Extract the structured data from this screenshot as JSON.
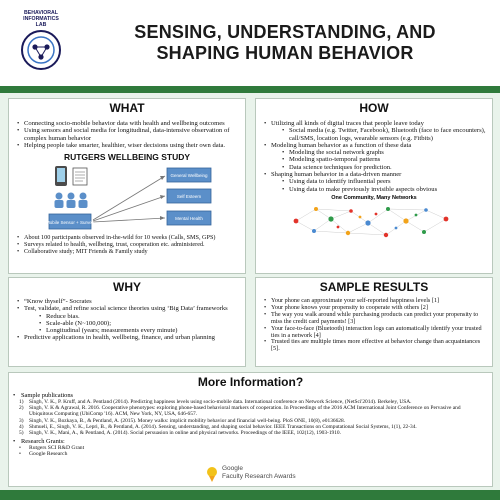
{
  "header": {
    "logo_lines": [
      "BEHAVIORAL",
      "INFORMATICS",
      "LAB"
    ],
    "title_line1": "SENSING, UNDERSTANDING, AND",
    "title_line2": "SHAPING HUMAN BEHAVIOR"
  },
  "what": {
    "heading": "WHAT",
    "bullets": [
      "Connecting socio-mobile behavior data with health and wellbeing outcomes",
      "Using sensors and social media for longitudinal, data-intensive observation of complex human behavior",
      "Helping people take smarter, healthier, wiser decisions using their own data."
    ],
    "study_title": "RUTGERS WELLBEING STUDY",
    "study_boxes": [
      "General Wellbeing",
      "Self Esteem",
      "Mental Health"
    ],
    "mobile_box": "Mobile Sensor + Survey",
    "bullets2": [
      "About 100 participants observed in-the-wild for 10 weeks (Calls, SMS, GPS)",
      "Surveys related to health, wellbeing, trust, cooperation etc. administered.",
      "Collaborative study; MIT Friends & Family study"
    ]
  },
  "why": {
    "heading": "WHY",
    "b1": "“Know thyself”- Socrates",
    "b2": "Test, validate, and refine social science theories using ‘Big Data’ frameworks",
    "sub": [
      "Reduce bias.",
      "Scale-able (N~100,000);",
      "Longitudinal (years; measurements every minute)"
    ],
    "b3": "Predictive applications in health, wellbeing, finance, and urban planning"
  },
  "how": {
    "heading": "HOW",
    "b1": "Utilizing all kinds of digital traces that people leave today",
    "b1_sub": [
      "Social media (e.g. Twitter, Facebook), Bluetooth (face to face encounters), call/SMS, location logs, wearable sensors (e.g. Fitbits)"
    ],
    "b2": "Modeling human behavior as a function of these data",
    "b2_sub": [
      "Modeling the social network graphs",
      "Modeling spatio-temporal patterns",
      "Data science techniques for prediction."
    ],
    "b3": "Shaping human behavior in a data-driven manner",
    "b3_sub": [
      "Using data to identify influential peers",
      "Using data to make previously invisible aspects obvious"
    ],
    "network_title": "One Community, Many Networks"
  },
  "results": {
    "heading": "SAMPLE RESULTS",
    "items": [
      "Your phone can approximate your self-reported happiness levels [1]",
      "Your phone knows your propensity to cooperate with others [2]",
      "The way you walk around while purchasing products can predict your propensity to miss the credit card payments! [3]",
      "Your face-to-face (Bluetooth) interaction logs can automatically identify your trusted ties in a network [4]",
      "Trusted ties are multiple times more effective at behavior change than acquaintances [5]."
    ]
  },
  "more": {
    "heading": "More Information?",
    "pubs_label": "Sample publications",
    "pubs": [
      {
        "n": "1)",
        "t": "Singh, V. K., P. Kruff, and A. Pentland (2014). Predicting happiness levels using socio-mobile data. International conference on Network Science, (NetSci'2014). Berkeley, USA."
      },
      {
        "n": "2)",
        "t": "Singh, V. K & Agrawal, R. 2016. Cooperative phenotypes: exploring phone-based behavioral markers of cooperation. In Proceedings of the 2016 ACM International Joint Conference on Pervasive and Ubiquitous Computing (UbiComp '16). ACM, New York, NY, USA, 646-657."
      },
      {
        "n": "3)",
        "t": "Singh, V. K., Bozkaya, B., & Pentland, A. (2015). Money walks: implicit mobility behavior and financial well-being. PloS ONE, 10(8), e0136628."
      },
      {
        "n": "4)",
        "t": "Shmueli, E., Singh, V. K., Lepri, B., & Pentland, A. (2014). Sensing, understanding, and shaping social behavior. IEEE Transactions on Computational Social Systems, 1(1), 22-34."
      },
      {
        "n": "5)",
        "t": "Singh, V. K., Mani, A., & Pentland, A. (2014). Social persuasion in online and physical networks. Proceedings of the IEEE, 102(12), 1903-1910."
      }
    ],
    "grants_label": "Research Grants:",
    "grants": [
      "Rutgers SCI R&D Grant",
      "Google Research"
    ],
    "google_label": "Google",
    "google_award": "Faculty Research Awards"
  },
  "colors": {
    "band": "#2f7a3b",
    "background": "#e9f3eb"
  }
}
